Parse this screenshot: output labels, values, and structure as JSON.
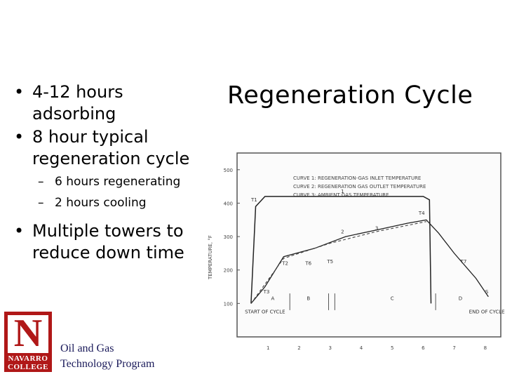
{
  "bullets": [
    {
      "text": "4-12 hours adsorbing"
    },
    {
      "text": "8 hour typical regeneration cycle",
      "subs": [
        "6 hours regenerating",
        "2 hours cooling"
      ]
    },
    {
      "text": "Multiple towers to reduce down time"
    }
  ],
  "bullet_char": "•",
  "dash_char": "–",
  "title": "Regeneration Cycle",
  "logo": {
    "letter": "N",
    "line1": "NAVARRO",
    "line2": "COLLEGE"
  },
  "program": {
    "line1": "Oil and Gas",
    "line2": "Technology Program"
  },
  "chart_data": {
    "type": "line",
    "legend": [
      "CURVE 1: REGENERATION-GAS INLET TEMPERATURE",
      "CURVE 2: REGENERATION GAS OUTLET TEMPERATURE",
      "CURVE 3: AMBIENT GAS TEMPERATURE"
    ],
    "ylabel": "TEMPERATURE, °F",
    "yticks": [
      100,
      200,
      300,
      400,
      500
    ],
    "xticks": [
      1,
      2,
      3,
      4,
      5,
      6,
      7,
      8
    ],
    "ylim": [
      0,
      550
    ],
    "xlim": [
      0,
      8.5
    ],
    "series": [
      {
        "name": "1",
        "x": [
          0.45,
          0.6,
          0.9,
          6.0,
          6.2,
          6.25
        ],
        "y": [
          100,
          390,
          420,
          420,
          410,
          100
        ]
      },
      {
        "name": "2",
        "x": [
          0.45,
          0.9,
          1.5,
          2.5,
          3.5,
          4.5,
          5.5,
          6.1,
          6.5,
          7.0,
          7.7,
          8.1
        ],
        "y": [
          100,
          150,
          240,
          265,
          300,
          320,
          340,
          350,
          310,
          250,
          175,
          120
        ]
      },
      {
        "name": "3",
        "x": [
          0.45,
          1.5,
          3.0,
          4.5,
          6.1
        ],
        "y": [
          100,
          235,
          280,
          315,
          345
        ]
      }
    ],
    "annotations": [
      "T1",
      "T2",
      "T3",
      "T4",
      "T5",
      "T6",
      "T7",
      "1",
      "2",
      "3",
      "A",
      "B",
      "C",
      "D",
      "S",
      "START OF CYCLE",
      "END OF CYCLE"
    ]
  }
}
